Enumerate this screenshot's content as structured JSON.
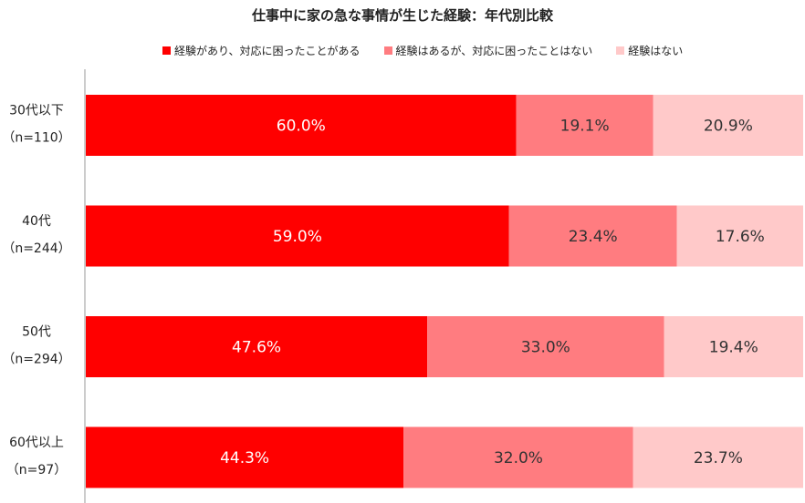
{
  "chart_data": {
    "type": "bar",
    "orientation": "horizontal",
    "stacked": true,
    "title": "仕事中に家の急な事情が生じた経験：年代別比較",
    "categories": [
      [
        "30代以下",
        "（n=110）"
      ],
      [
        "40代",
        "（n=244）"
      ],
      [
        "50代",
        "（n=294）"
      ],
      [
        "60代以上",
        "（n=97）"
      ]
    ],
    "series": [
      {
        "name": "経験があり、対応に困ったことがある",
        "color": "#ff0000",
        "label_color": "#ffffff",
        "values": [
          60.0,
          59.0,
          47.6,
          44.3
        ]
      },
      {
        "name": "経験はあるが、対応に困ったことはない",
        "color": "#ff7c80",
        "label_color": "#333333",
        "values": [
          19.1,
          23.4,
          33.0,
          32.0
        ]
      },
      {
        "name": "経験はない",
        "color": "#ffc9c9",
        "label_color": "#333333",
        "values": [
          20.9,
          17.6,
          19.4,
          23.7
        ]
      }
    ],
    "xlim": [
      0,
      100
    ],
    "value_format": "0.0%",
    "legend_position": "top",
    "grid": false
  }
}
